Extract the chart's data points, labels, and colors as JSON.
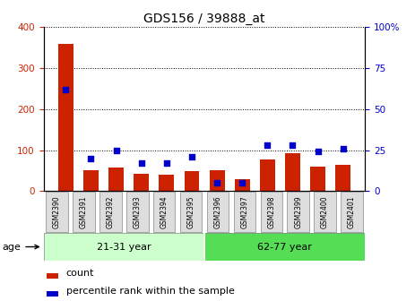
{
  "title": "GDS156 / 39888_at",
  "samples": [
    "GSM2390",
    "GSM2391",
    "GSM2392",
    "GSM2393",
    "GSM2394",
    "GSM2395",
    "GSM2396",
    "GSM2397",
    "GSM2398",
    "GSM2399",
    "GSM2400",
    "GSM2401"
  ],
  "counts": [
    360,
    50,
    57,
    42,
    40,
    48,
    50,
    30,
    78,
    92,
    60,
    65
  ],
  "percentiles": [
    62,
    20,
    25,
    17,
    17,
    21,
    5,
    5,
    28,
    28,
    24,
    26
  ],
  "ylim_left": [
    0,
    400
  ],
  "ylim_right": [
    0,
    100
  ],
  "yticks_left": [
    0,
    100,
    200,
    300,
    400
  ],
  "yticks_right": [
    0,
    25,
    50,
    75,
    100
  ],
  "ytick_right_labels": [
    "0",
    "25",
    "50",
    "75",
    "100%"
  ],
  "groups": [
    {
      "label": "21-31 year",
      "start": 0,
      "end": 6,
      "color": "#ccffcc"
    },
    {
      "label": "62-77 year",
      "start": 6,
      "end": 12,
      "color": "#55dd55"
    }
  ],
  "bar_color": "#cc2200",
  "scatter_color": "#0000cc",
  "legend_count_label": "count",
  "legend_pct_label": "percentile rank within the sample",
  "age_label": "age",
  "xlabel_box_color": "#dddddd",
  "xlabel_box_edge": "#888888"
}
